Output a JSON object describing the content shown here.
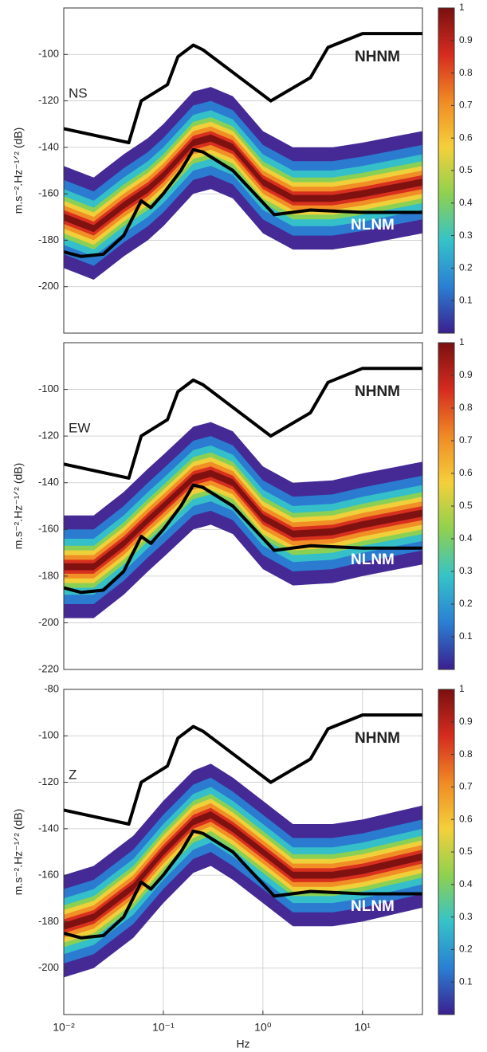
{
  "chart_data": [
    {
      "type": "line",
      "label": "NS",
      "ylabel": "m.s⁻².Hz⁻¹ᐟ² (dB)",
      "xlim": [
        0.01,
        40
      ],
      "log_x": true,
      "ylim": [
        -220,
        -80
      ],
      "yticks": [
        -100,
        -120,
        -140,
        -160,
        -180,
        -200
      ],
      "grid": true,
      "series": [
        {
          "name": "NHNM",
          "color": "#000000",
          "x": [
            0.01,
            0.045,
            0.06,
            0.11,
            0.14,
            0.2,
            0.25,
            1.2,
            3,
            4.5,
            10,
            40
          ],
          "values": [
            -132,
            -138,
            -120,
            -113,
            -101,
            -96,
            -98,
            -120,
            -110,
            -97,
            -91,
            -91
          ]
        },
        {
          "name": "NLNM",
          "color": "#000000",
          "x": [
            0.01,
            0.015,
            0.025,
            0.04,
            0.06,
            0.075,
            0.1,
            0.15,
            0.2,
            0.25,
            0.5,
            1.3,
            3,
            10,
            40
          ],
          "values": [
            -185,
            -187,
            -186,
            -178,
            -163,
            -166,
            -160,
            -150,
            -141,
            -142,
            -150,
            -169,
            -167,
            -168,
            -168
          ]
        }
      ],
      "density": {
        "x": [
          0.01,
          0.02,
          0.04,
          0.07,
          0.1,
          0.2,
          0.3,
          0.5,
          1,
          2,
          5,
          10,
          40
        ],
        "values": [
          -170,
          -175,
          -165,
          -158,
          -152,
          -138,
          -136,
          -140,
          -155,
          -162,
          -162,
          -160,
          -155
        ]
      },
      "colorbar": {
        "lim": [
          0,
          1
        ],
        "ticks": [
          0.1,
          0.2,
          0.3,
          0.4,
          0.5,
          0.6,
          0.7,
          0.8,
          0.9,
          1
        ]
      },
      "colormap": [
        "#3b1f8f",
        "#2a7fd4",
        "#35c3c8",
        "#8fd14f",
        "#f4d03a",
        "#f08a24",
        "#d62b1e",
        "#7a1010"
      ]
    },
    {
      "type": "line",
      "label": "EW",
      "ylabel": "m.s⁻².Hz⁻¹ᐟ² (dB)",
      "xlim": [
        0.01,
        40
      ],
      "log_x": true,
      "ylim": [
        -220,
        -80
      ],
      "yticks": [
        -100,
        -120,
        -140,
        -160,
        -180,
        -200,
        -220
      ],
      "grid": true,
      "series": [
        {
          "name": "NHNM",
          "color": "#000000",
          "x": [
            0.01,
            0.045,
            0.06,
            0.11,
            0.14,
            0.2,
            0.25,
            1.2,
            3,
            4.5,
            10,
            40
          ],
          "values": [
            -132,
            -138,
            -120,
            -113,
            -101,
            -96,
            -98,
            -120,
            -110,
            -97,
            -91,
            -91
          ]
        },
        {
          "name": "NLNM",
          "color": "#000000",
          "x": [
            0.01,
            0.015,
            0.025,
            0.04,
            0.06,
            0.075,
            0.1,
            0.15,
            0.2,
            0.25,
            0.5,
            1.3,
            3,
            10,
            40
          ],
          "values": [
            -185,
            -187,
            -186,
            -178,
            -163,
            -166,
            -160,
            -150,
            -141,
            -142,
            -150,
            -169,
            -167,
            -168,
            -168
          ]
        }
      ],
      "density": {
        "x": [
          0.01,
          0.02,
          0.04,
          0.07,
          0.1,
          0.2,
          0.3,
          0.5,
          1,
          2,
          5,
          10,
          40
        ],
        "values": [
          -176,
          -176,
          -166,
          -156,
          -150,
          -138,
          -136,
          -140,
          -155,
          -162,
          -161,
          -158,
          -153
        ]
      },
      "colorbar": {
        "lim": [
          0,
          1
        ],
        "ticks": [
          0.1,
          0.2,
          0.3,
          0.4,
          0.5,
          0.6,
          0.7,
          0.8,
          0.9,
          1
        ]
      },
      "colormap": [
        "#3b1f8f",
        "#2a7fd4",
        "#35c3c8",
        "#8fd14f",
        "#f4d03a",
        "#f08a24",
        "#d62b1e",
        "#7a1010"
      ]
    },
    {
      "type": "line",
      "label": "Z",
      "ylabel": "m.s⁻².Hz⁻¹ᐟ² (dB)",
      "xlabel": "Hz",
      "xlim": [
        0.01,
        40
      ],
      "log_x": true,
      "xticks": [
        {
          "value": 0.01,
          "label": "10⁻²"
        },
        {
          "value": 0.1,
          "label": "10⁻¹"
        },
        {
          "value": 1,
          "label": "10⁰"
        },
        {
          "value": 10,
          "label": "10¹"
        }
      ],
      "ylim": [
        -220,
        -80
      ],
      "yticks": [
        -80,
        -100,
        -120,
        -140,
        -160,
        -180,
        -200
      ],
      "grid": true,
      "series": [
        {
          "name": "NHNM",
          "color": "#000000",
          "x": [
            0.01,
            0.045,
            0.06,
            0.11,
            0.14,
            0.2,
            0.25,
            1.2,
            3,
            4.5,
            10,
            40
          ],
          "values": [
            -132,
            -138,
            -120,
            -113,
            -101,
            -96,
            -98,
            -120,
            -110,
            -97,
            -91,
            -91
          ]
        },
        {
          "name": "NLNM",
          "color": "#000000",
          "x": [
            0.01,
            0.015,
            0.025,
            0.04,
            0.06,
            0.075,
            0.1,
            0.15,
            0.2,
            0.25,
            0.5,
            1.3,
            3,
            10,
            40
          ],
          "values": [
            -185,
            -187,
            -186,
            -178,
            -163,
            -166,
            -160,
            -150,
            -141,
            -142,
            -150,
            -169,
            -167,
            -168,
            -168
          ]
        }
      ],
      "density": {
        "x": [
          0.01,
          0.02,
          0.05,
          0.1,
          0.2,
          0.3,
          0.5,
          1,
          2,
          5,
          10,
          40
        ],
        "values": [
          -182,
          -178,
          -165,
          -150,
          -137,
          -134,
          -140,
          -150,
          -160,
          -160,
          -158,
          -152
        ]
      },
      "colorbar": {
        "lim": [
          0,
          1
        ],
        "ticks": [
          0.1,
          0.2,
          0.3,
          0.4,
          0.5,
          0.6,
          0.7,
          0.8,
          0.9,
          1
        ]
      },
      "colormap": [
        "#3b1f8f",
        "#2a7fd4",
        "#35c3c8",
        "#8fd14f",
        "#f4d03a",
        "#f08a24",
        "#d62b1e",
        "#7a1010"
      ]
    }
  ]
}
